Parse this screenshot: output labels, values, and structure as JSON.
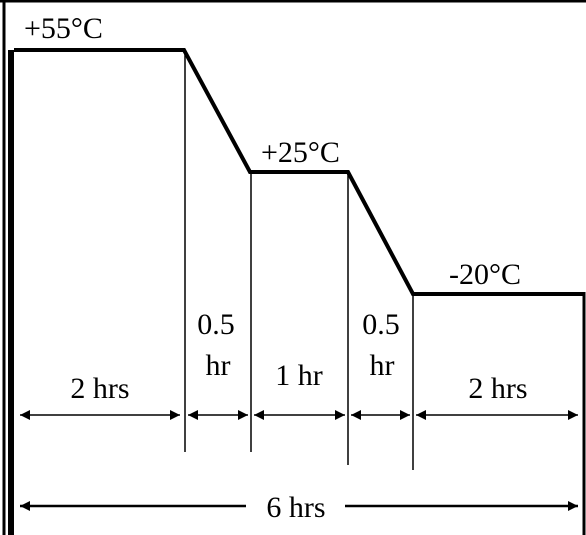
{
  "diagram": {
    "temperatures": {
      "high": "+55°C",
      "mid": "+25°C",
      "low": "-20°C"
    },
    "durations": {
      "hold_high": "2 hrs",
      "ramp_1_top": "0.5",
      "ramp_1_bottom": "hr",
      "hold_mid": "1 hr",
      "ramp_2_top": "0.5",
      "ramp_2_bottom": "hr",
      "hold_low": "2 hrs",
      "total": "6 hrs"
    },
    "colors": {
      "line": "#000000",
      "background": "#ffffff"
    }
  }
}
